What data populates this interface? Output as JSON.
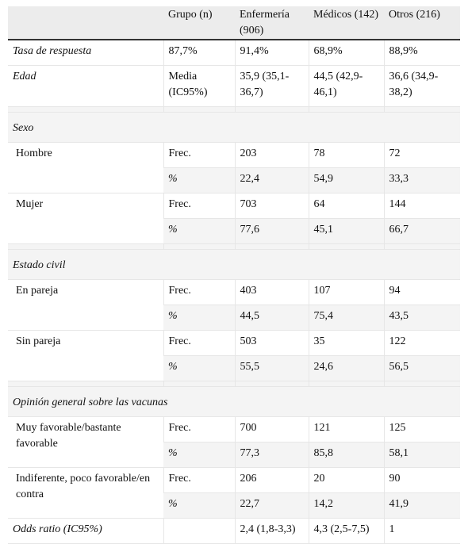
{
  "header": {
    "col0": "",
    "col1": "Grupo (n)",
    "col2": "Enfermería (906)",
    "col3": "Médicos (142)",
    "col4": "Otros (216)"
  },
  "rows": {
    "tasa": {
      "label": "Tasa de respuesta",
      "group": "87,7%",
      "enf": "91,4%",
      "med": "68,9%",
      "otr": "88,9%"
    },
    "edad": {
      "label": "Edad",
      "group": "Media (IC95%)",
      "enf": "35,9 (35,1-36,7)",
      "med": "44,5 (42,9-46,1)",
      "otr": "36,6 (34,9-38,2)"
    },
    "sexo": {
      "label": "Sexo"
    },
    "hombre": {
      "label": "Hombre",
      "frec": "Frec.",
      "pct": "%",
      "enf_f": "203",
      "med_f": "78",
      "otr_f": "72",
      "enf_p": "22,4",
      "med_p": "54,9",
      "otr_p": "33,3"
    },
    "mujer": {
      "label": "Mujer",
      "frec": "Frec.",
      "pct": "%",
      "enf_f": "703",
      "med_f": "64",
      "otr_f": "144",
      "enf_p": "77,6",
      "med_p": "45,1",
      "otr_p": "66,7"
    },
    "estado": {
      "label": "Estado civil"
    },
    "pareja": {
      "label": "En pareja",
      "frec": "Frec.",
      "pct": "%",
      "enf_f": "403",
      "med_f": "107",
      "otr_f": "94",
      "enf_p": "44,5",
      "med_p": "75,4",
      "otr_p": "43,5"
    },
    "sinpareja": {
      "label": "Sin pareja",
      "frec": "Frec.",
      "pct": "%",
      "enf_f": "503",
      "med_f": "35",
      "otr_f": "122",
      "enf_p": "55,5",
      "med_p": "24,6",
      "otr_p": "56,5"
    },
    "opinion": {
      "label": "Opinión general sobre las vacunas"
    },
    "favorable": {
      "label": "Muy favorable/bastante favorable",
      "frec": "Frec.",
      "pct": "%",
      "enf_f": "700",
      "med_f": "121",
      "otr_f": "125",
      "enf_p": "77,3",
      "med_p": "85,8",
      "otr_p": "58,1"
    },
    "indiferente": {
      "label": "Indiferente, poco favorable/en contra",
      "frec": "Frec.",
      "pct": "%",
      "enf_f": "206",
      "med_f": "20",
      "otr_f": "90",
      "enf_p": "22,7",
      "med_p": "14,2",
      "otr_p": "41,9"
    },
    "odds": {
      "label": "Odds ratio (IC95%)",
      "group": "",
      "enf": "2,4 (1,8-3,3)",
      "med": "4,3 (2,5-7,5)",
      "otr": "1"
    }
  }
}
